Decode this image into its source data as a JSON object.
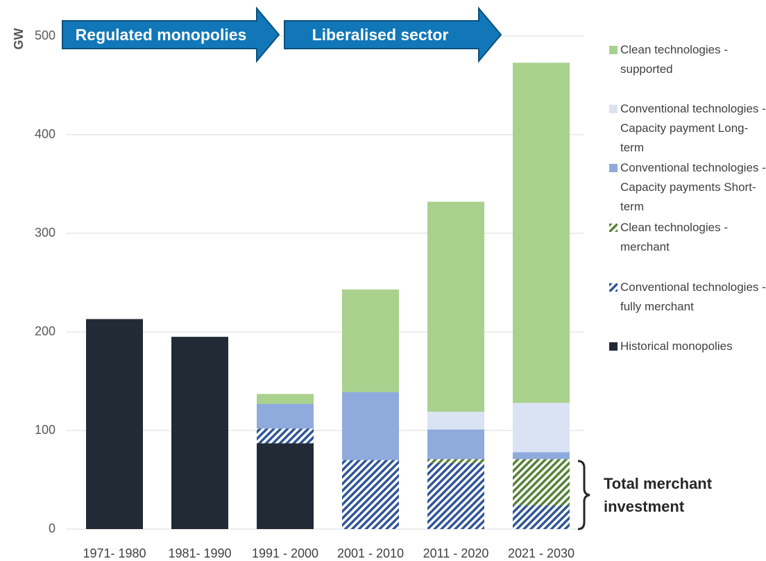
{
  "chart_data": {
    "type": "stacked_bar",
    "y_label": "GW",
    "categories": [
      "1971- 1980",
      "1981- 1990",
      "1991 - 2000",
      "2001 - 2010",
      "2011 - 2020",
      "2021 - 2030"
    ],
    "ylim": [
      0,
      500
    ],
    "yticks": [
      0,
      100,
      200,
      300,
      400,
      500
    ],
    "grid": true,
    "series": [
      {
        "name": "Historical monopolies",
        "color": "#222a35",
        "hatched": false,
        "values": [
          213,
          195,
          87,
          null,
          null,
          null
        ]
      },
      {
        "name": "Conventional technologies - fully merchant",
        "color": "#2f5597",
        "hatched": true,
        "values": [
          null,
          null,
          15,
          70,
          67,
          24
        ]
      },
      {
        "name": "Clean technologies - merchant",
        "color": "#548235",
        "hatched": true,
        "values": [
          null,
          null,
          null,
          null,
          4,
          47
        ]
      },
      {
        "name": "Conventional technologies - Capacity payments Short-term",
        "color": "#8faadc",
        "hatched": false,
        "values": [
          null,
          null,
          25,
          69,
          30,
          7
        ]
      },
      {
        "name": "Conventional technologies - Capacity payment Long-term",
        "color": "#dae3f3",
        "hatched": false,
        "values": [
          null,
          null,
          null,
          null,
          18,
          50
        ]
      },
      {
        "name": "Clean technologies - supported",
        "color": "#a9d18e",
        "hatched": false,
        "values": [
          null,
          null,
          10,
          104,
          213,
          345
        ]
      }
    ],
    "arrows": [
      "Regulated monopolies",
      "Liberalised sector"
    ],
    "annotation": "Total merchant investment"
  }
}
